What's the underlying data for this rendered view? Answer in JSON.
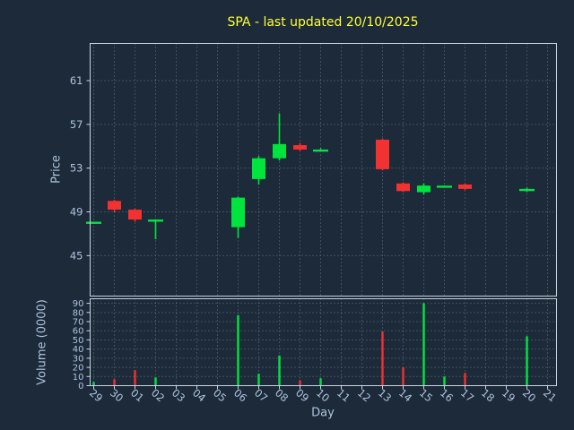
{
  "colors": {
    "background": "#1c2a39",
    "title": "#ffff3a",
    "frame": "#c8d4e0",
    "tick": "#b0c4de",
    "grid": "#9fb4c8",
    "up": "#00e53e",
    "down": "#f23131"
  },
  "chart_data": {
    "type": "candlestick",
    "title": "SPA - last updated 20/10/2025",
    "xlabel": "Day",
    "grid": true,
    "x_categories": [
      "29",
      "30",
      "01",
      "02",
      "03",
      "04",
      "05",
      "06",
      "07",
      "08",
      "09",
      "10",
      "11",
      "12",
      "13",
      "14",
      "15",
      "16",
      "17",
      "18",
      "19",
      "20",
      "21"
    ],
    "price_panel": {
      "ylabel": "Price",
      "ylim": [
        41.3,
        64.4
      ],
      "yticks": [
        45,
        49,
        53,
        57,
        61
      ]
    },
    "volume_panel": {
      "ylabel": "Volume (0000)",
      "ylim": [
        0,
        95
      ],
      "yticks": [
        0,
        10,
        20,
        30,
        40,
        50,
        60,
        70,
        80,
        90
      ]
    },
    "candles": [
      {
        "day": "29",
        "open": 48.0,
        "high": 48.1,
        "low": 47.9,
        "close": 48.0,
        "volume": 4
      },
      {
        "day": "30",
        "open": 50.0,
        "high": 50.1,
        "low": 49.0,
        "close": 49.2,
        "volume": 7
      },
      {
        "day": "01",
        "open": 49.2,
        "high": 49.3,
        "low": 48.1,
        "close": 48.3,
        "volume": 17
      },
      {
        "day": "02",
        "open": 48.2,
        "high": 48.3,
        "low": 46.5,
        "close": 48.2,
        "volume": 9
      },
      {
        "day": "06",
        "open": 47.6,
        "high": 50.4,
        "low": 46.6,
        "close": 50.3,
        "volume": 77
      },
      {
        "day": "07",
        "open": 52.0,
        "high": 54.1,
        "low": 51.5,
        "close": 53.9,
        "volume": 13
      },
      {
        "day": "08",
        "open": 53.9,
        "high": 58.0,
        "low": 53.7,
        "close": 55.2,
        "volume": 33
      },
      {
        "day": "09",
        "open": 55.1,
        "high": 55.3,
        "low": 54.6,
        "close": 54.7,
        "volume": 6
      },
      {
        "day": "10",
        "open": 54.6,
        "high": 54.8,
        "low": 54.5,
        "close": 54.6,
        "volume": 8
      },
      {
        "day": "13",
        "open": 55.6,
        "high": 55.7,
        "low": 52.8,
        "close": 52.9,
        "volume": 59
      },
      {
        "day": "14",
        "open": 51.6,
        "high": 51.7,
        "low": 50.8,
        "close": 50.9,
        "volume": 20
      },
      {
        "day": "15",
        "open": 50.8,
        "high": 51.6,
        "low": 50.6,
        "close": 51.4,
        "volume": 90
      },
      {
        "day": "16",
        "open": 51.3,
        "high": 51.4,
        "low": 51.2,
        "close": 51.3,
        "volume": 10
      },
      {
        "day": "17",
        "open": 51.5,
        "high": 51.6,
        "low": 51.0,
        "close": 51.1,
        "volume": 14
      },
      {
        "day": "20",
        "open": 51.0,
        "high": 51.2,
        "low": 50.8,
        "close": 51.0,
        "volume": 54
      }
    ]
  }
}
